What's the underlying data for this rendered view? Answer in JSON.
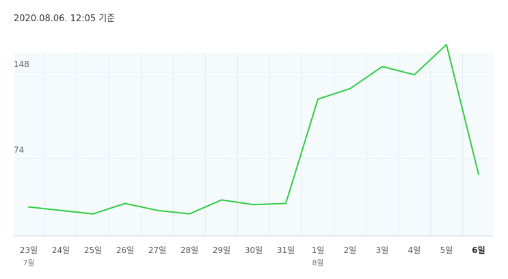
{
  "header": {
    "timestamp": "2020.08.06. 12:05 기준"
  },
  "colors": {
    "line": "#2ecc40",
    "plot_background": "#f5fafd",
    "grid": "#e3ecf3",
    "axis": "#cfd8df"
  },
  "chart_data": {
    "type": "line",
    "title": "",
    "xlabel": "",
    "ylabel": "",
    "categories": [
      "23일",
      "24일",
      "25일",
      "26일",
      "27일",
      "28일",
      "29일",
      "30일",
      "31일",
      "1일",
      "2일",
      "3일",
      "4일",
      "5일",
      "6일"
    ],
    "month_labels": [
      {
        "category_index": 0,
        "text": "7월"
      },
      {
        "category_index": 9,
        "text": "8월"
      }
    ],
    "highlighted_category_index": 14,
    "y_ticks": [
      74,
      148
    ],
    "ylim": [
      0,
      164
    ],
    "grid": true,
    "legend": "none",
    "series": [
      {
        "values": [
          25,
          22,
          19,
          28,
          22,
          19,
          31,
          27,
          28,
          118,
          127,
          146,
          139,
          165,
          53
        ]
      }
    ]
  }
}
